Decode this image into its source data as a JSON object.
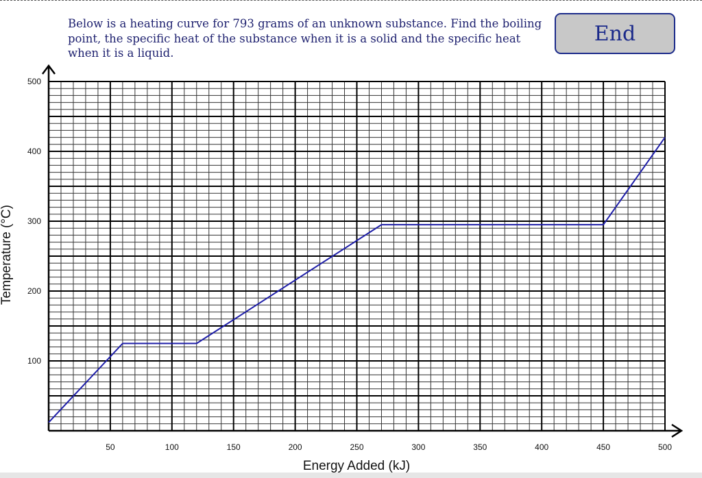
{
  "question": {
    "text": "Below is a heating curve for 793 grams of an unknown substance. Find the boiling point, the specific heat of the substance when it is a solid and the specific heat when it is a liquid."
  },
  "end_button": {
    "label": "End"
  },
  "chart_data": {
    "type": "line",
    "title": "",
    "xlabel": "Energy Added (kJ)",
    "ylabel": "Temperature (°C)",
    "xlim": [
      0,
      500
    ],
    "ylim": [
      0,
      500
    ],
    "xticks": [
      50,
      100,
      150,
      200,
      250,
      300,
      350,
      400,
      450,
      500
    ],
    "yticks": [
      100,
      200,
      300,
      400,
      500
    ],
    "grid": true,
    "series": [
      {
        "color": "#1e1ea8",
        "points": [
          {
            "x": 0,
            "y": 12
          },
          {
            "x": 60,
            "y": 125
          },
          {
            "x": 120,
            "y": 125
          },
          {
            "x": 270,
            "y": 295
          },
          {
            "x": 450,
            "y": 295
          },
          {
            "x": 500,
            "y": 420
          }
        ]
      }
    ]
  }
}
